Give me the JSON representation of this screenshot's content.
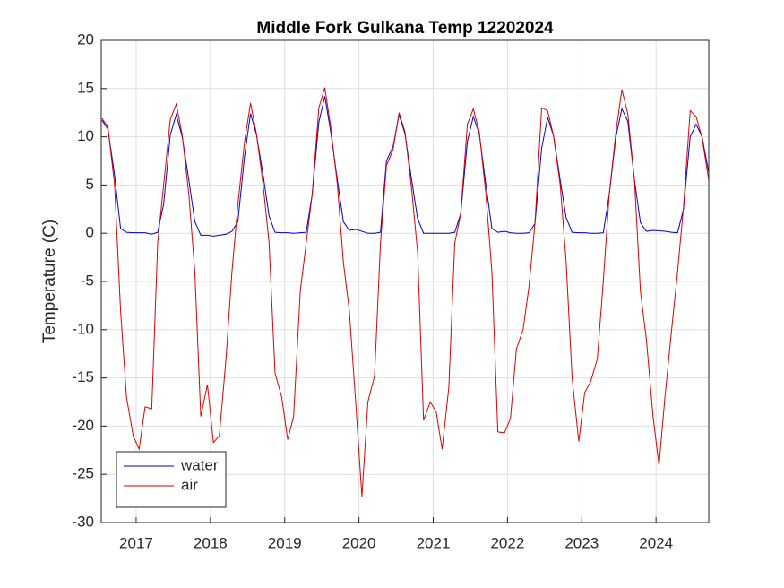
{
  "chart_data": {
    "type": "line",
    "title": "Middle Fork Gulkana Temp 12202024",
    "ylabel": "Temperature (C)",
    "x": [
      2016.54,
      2016.62,
      2016.71,
      2016.79,
      2016.87,
      2016.96,
      2017.04,
      2017.12,
      2017.21,
      2017.29,
      2017.37,
      2017.46,
      2017.54,
      2017.62,
      2017.71,
      2017.79,
      2017.87,
      2017.96,
      2018.04,
      2018.12,
      2018.21,
      2018.29,
      2018.37,
      2018.46,
      2018.54,
      2018.62,
      2018.71,
      2018.79,
      2018.87,
      2018.96,
      2019.04,
      2019.12,
      2019.21,
      2019.29,
      2019.37,
      2019.46,
      2019.54,
      2019.62,
      2019.71,
      2019.79,
      2019.87,
      2019.96,
      2020.04,
      2020.12,
      2020.21,
      2020.29,
      2020.37,
      2020.46,
      2020.54,
      2020.62,
      2020.71,
      2020.79,
      2020.87,
      2020.96,
      2021.04,
      2021.12,
      2021.21,
      2021.29,
      2021.37,
      2021.46,
      2021.54,
      2021.62,
      2021.71,
      2021.79,
      2021.87,
      2021.96,
      2022.04,
      2022.12,
      2022.21,
      2022.29,
      2022.37,
      2022.46,
      2022.54,
      2022.62,
      2022.71,
      2022.79,
      2022.87,
      2022.96,
      2023.04,
      2023.12,
      2023.21,
      2023.29,
      2023.37,
      2023.46,
      2023.54,
      2023.62,
      2023.71,
      2023.79,
      2023.87,
      2023.96,
      2024.04,
      2024.12,
      2024.21,
      2024.29,
      2024.37,
      2024.46,
      2024.54,
      2024.62,
      2024.71
    ],
    "series": [
      {
        "name": "water",
        "color": "#0000cc",
        "values": [
          11.7,
          10.8,
          6.0,
          0.5,
          0.1,
          0.05,
          0.05,
          0.05,
          -0.1,
          0.1,
          3,
          10.2,
          12.3,
          10.0,
          5.5,
          1.2,
          -0.2,
          -0.2,
          -0.3,
          -0.2,
          -0.1,
          0.2,
          1.2,
          8,
          12.4,
          10.2,
          6,
          1.8,
          0.1,
          0.05,
          0.05,
          0,
          0.05,
          0.1,
          4,
          11.5,
          14.2,
          10.5,
          5.5,
          1.2,
          0.3,
          0.4,
          0.2,
          0,
          0,
          0.1,
          7.5,
          9,
          12.3,
          10.3,
          5.5,
          1.5,
          0,
          0,
          0,
          0,
          0,
          0.1,
          2,
          9.5,
          12.1,
          10.3,
          5,
          0.5,
          0.1,
          0.2,
          0.05,
          0,
          0,
          0.05,
          1,
          8.8,
          12,
          10.1,
          5.5,
          1.6,
          0.1,
          0.05,
          0.05,
          0,
          0,
          0.05,
          4,
          10,
          12.9,
          11.6,
          5.5,
          1.1,
          0.2,
          0.3,
          0.25,
          0.2,
          0.1,
          0.05,
          2.5,
          10,
          11.3,
          10,
          6.3
        ]
      },
      {
        "name": "air",
        "color": "#dd0000",
        "values": [
          11.9,
          11.0,
          5.0,
          -8,
          -17,
          -21,
          -22.4,
          -18,
          -18.2,
          -1,
          5,
          11.8,
          13.4,
          10.2,
          4,
          -4,
          -19,
          -15.7,
          -21.7,
          -21,
          -13,
          -4,
          3,
          9.5,
          13.5,
          10.3,
          5,
          -1,
          -14.5,
          -17,
          -21.4,
          -19,
          -6,
          -1,
          4,
          13,
          15.1,
          11,
          5,
          -3,
          -8,
          -18,
          -27.3,
          -17.5,
          -14.8,
          -1,
          7,
          8.7,
          12.5,
          10.5,
          4.5,
          -2,
          -19.4,
          -17.5,
          -18.5,
          -22.4,
          -16,
          -1,
          2,
          11.3,
          12.9,
          10.5,
          4,
          -4,
          -20.6,
          -20.7,
          -19.2,
          -12,
          -10,
          -5.5,
          1,
          13,
          12.7,
          10.1,
          5,
          -3,
          -15,
          -21.6,
          -16.5,
          -15.4,
          -13,
          -5,
          4,
          10.5,
          14.9,
          12.4,
          5.5,
          -6,
          -11,
          -19,
          -24.1,
          -17,
          -10,
          -4,
          2.7,
          12.7,
          12.1,
          9.9,
          5.5
        ]
      }
    ],
    "xlim": [
      2016.53,
      2024.71
    ],
    "xticks": [
      2017,
      2018,
      2019,
      2020,
      2021,
      2022,
      2023,
      2024
    ],
    "ylim": [
      -30,
      20
    ],
    "yticks": [
      -30,
      -25,
      -20,
      -15,
      -10,
      -5,
      0,
      5,
      10,
      15,
      20
    ],
    "grid": true,
    "legend": "lower left"
  }
}
